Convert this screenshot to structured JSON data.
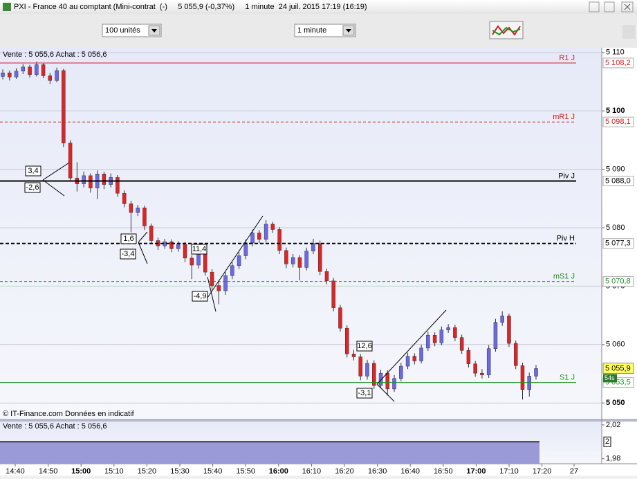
{
  "window": {
    "title": "PXI - France 40 au comptant (Mini-contrat  (-)     5 055,9 (-0,37%)     1 minute  24 juil. 2015 17:19 (16:19)"
  },
  "toolbar": {
    "quantity": "100 unités",
    "timeframe": "1 minute"
  },
  "chart_data": [
    {
      "type": "candlestick",
      "info": "Vente : 5 055,6 Achat : 5 056,6",
      "copyright": "© IT-Finance.com  Données en indicatif",
      "ylim": [
        5047.3,
        5110.8
      ],
      "yticks": [
        {
          "value": 5110,
          "label": "5 110"
        },
        {
          "value": 5100,
          "label": "5 100"
        },
        {
          "value": 5090,
          "label": "5 090"
        },
        {
          "value": 5080,
          "label": "5 080"
        },
        {
          "value": 5070,
          "label": "5 070"
        },
        {
          "value": 5060,
          "label": "5 060"
        },
        {
          "value": 5050,
          "label": "5 050"
        }
      ],
      "categories": [
        "14:40",
        "14:50",
        "15:00",
        "15:10",
        "15:20",
        "15:30",
        "15:40",
        "15:50",
        "16:00",
        "16:10",
        "16:20",
        "16:30",
        "16:40",
        "16:50",
        "17:00",
        "17:10",
        "17:20",
        "27"
      ],
      "up_color": "#6a6ae6",
      "down_color": "#e02424",
      "levels": [
        {
          "name": "R1 J",
          "value": 5108.2,
          "label": "5 108,2",
          "color": "#d02020",
          "dashed": false
        },
        {
          "name": "mR1 J",
          "value": 5098.1,
          "label": "5 098,1",
          "color": "#d02020",
          "dashed": true
        },
        {
          "name": "Piv J",
          "value": 5088.0,
          "label": "5 088,0",
          "color": "#000000",
          "dashed": false
        },
        {
          "name": "Piv H",
          "value": 5077.3,
          "label": "5 077,3",
          "color": "#000000",
          "dashed": true
        },
        {
          "name": "mS1 J",
          "value": 5070.8,
          "label": "5 070,8",
          "color": "#209020",
          "dashed": true
        },
        {
          "name": "S1 J",
          "value": 5053.5,
          "label": "5 053,5",
          "color": "#209020",
          "dashed": false
        }
      ],
      "current": {
        "value": 5055.9,
        "label": "5 055,9",
        "timer": "54s"
      },
      "annotations": [
        "3,4",
        "-2,6",
        "1,6",
        "-3,4",
        "11,4",
        "-4,9",
        "12,6",
        "-3,1"
      ],
      "candles": [
        [
          5105.9,
          5107.1,
          5105.4,
          5106.5
        ],
        [
          5106.5,
          5106.9,
          5105.2,
          5105.8
        ],
        [
          5105.8,
          5107.3,
          5105.5,
          5106.8
        ],
        [
          5106.8,
          5108.0,
          5106.3,
          5107.5
        ],
        [
          5107.5,
          5107.9,
          5105.7,
          5106.2
        ],
        [
          5106.2,
          5108.4,
          5105.9,
          5107.9
        ],
        [
          5107.9,
          5108.2,
          5105.6,
          5106.0
        ],
        [
          5106.0,
          5106.5,
          5104.6,
          5105.2
        ],
        [
          5105.2,
          5107.4,
          5104.9,
          5106.9
        ],
        [
          5106.9,
          5107.2,
          5093.8,
          5094.5
        ],
        [
          5094.5,
          5095.0,
          5087.9,
          5088.5
        ],
        [
          5088.5,
          5091.2,
          5086.2,
          5087.5
        ],
        [
          5087.5,
          5089.6,
          5086.9,
          5088.9
        ],
        [
          5088.9,
          5089.3,
          5086.0,
          5086.8
        ],
        [
          5086.8,
          5089.8,
          5084.9,
          5089.2
        ],
        [
          5089.2,
          5089.6,
          5086.6,
          5087.4
        ],
        [
          5087.4,
          5089.3,
          5086.9,
          5088.6
        ],
        [
          5088.6,
          5089.0,
          5085.3,
          5085.9
        ],
        [
          5085.9,
          5086.4,
          5083.5,
          5084.1
        ],
        [
          5084.1,
          5084.6,
          5079.2,
          5082.6
        ],
        [
          5082.6,
          5083.9,
          5082.0,
          5083.4
        ],
        [
          5083.4,
          5083.8,
          5079.6,
          5080.3
        ],
        [
          5080.3,
          5080.7,
          5077.2,
          5077.8
        ],
        [
          5077.8,
          5078.3,
          5076.2,
          5076.9
        ],
        [
          5076.9,
          5078.1,
          5076.4,
          5077.6
        ],
        [
          5077.6,
          5078.0,
          5075.8,
          5076.4
        ],
        [
          5076.4,
          5077.7,
          5075.9,
          5077.2
        ],
        [
          5077.2,
          5077.6,
          5074.1,
          5074.8
        ],
        [
          5074.8,
          5075.3,
          5071.2,
          5073.6
        ],
        [
          5073.6,
          5076.5,
          5073.0,
          5075.9
        ],
        [
          5075.9,
          5076.3,
          5071.8,
          5072.4
        ],
        [
          5072.4,
          5072.9,
          5069.4,
          5070.1
        ],
        [
          5070.1,
          5071.0,
          5066.9,
          5069.2
        ],
        [
          5069.2,
          5072.4,
          5068.5,
          5071.8
        ],
        [
          5071.8,
          5074.1,
          5071.2,
          5073.5
        ],
        [
          5073.5,
          5075.8,
          5072.9,
          5075.2
        ],
        [
          5075.2,
          5078.0,
          5074.6,
          5077.4
        ],
        [
          5077.4,
          5079.7,
          5076.8,
          5079.1
        ],
        [
          5079.1,
          5079.6,
          5077.3,
          5078.0
        ],
        [
          5078.0,
          5081.3,
          5077.5,
          5080.6
        ],
        [
          5080.6,
          5081.0,
          5079.1,
          5079.7
        ],
        [
          5079.7,
          5080.1,
          5075.5,
          5076.1
        ],
        [
          5076.1,
          5076.6,
          5073.1,
          5073.8
        ],
        [
          5073.8,
          5075.5,
          5073.2,
          5074.9
        ],
        [
          5074.9,
          5075.3,
          5071.0,
          5073.2
        ],
        [
          5073.2,
          5076.6,
          5072.7,
          5076.0
        ],
        [
          5076.0,
          5078.1,
          5075.5,
          5077.3
        ],
        [
          5077.3,
          5077.8,
          5071.9,
          5072.5
        ],
        [
          5072.5,
          5073.0,
          5070.3,
          5070.9
        ],
        [
          5070.9,
          5071.4,
          5065.7,
          5066.3
        ],
        [
          5066.3,
          5066.8,
          5062.2,
          5062.8
        ],
        [
          5062.8,
          5063.3,
          5057.8,
          5058.4
        ],
        [
          5058.4,
          5059.1,
          5057.3,
          5057.9
        ],
        [
          5057.9,
          5058.4,
          5053.9,
          5054.6
        ],
        [
          5054.6,
          5057.4,
          5054.0,
          5056.8
        ],
        [
          5056.8,
          5057.3,
          5052.4,
          5053.0
        ],
        [
          5053.0,
          5055.7,
          5052.5,
          5055.1
        ],
        [
          5055.1,
          5055.6,
          5051.3,
          5052.4
        ],
        [
          5052.4,
          5054.8,
          5051.9,
          5054.2
        ],
        [
          5054.2,
          5056.9,
          5053.7,
          5056.3
        ],
        [
          5056.3,
          5058.6,
          5055.8,
          5058.0
        ],
        [
          5058.0,
          5058.5,
          5056.6,
          5057.2
        ],
        [
          5057.2,
          5060.0,
          5056.8,
          5059.4
        ],
        [
          5059.4,
          5062.2,
          5058.9,
          5061.6
        ],
        [
          5061.6,
          5062.1,
          5059.7,
          5060.3
        ],
        [
          5060.3,
          5063.1,
          5059.9,
          5062.5
        ],
        [
          5062.5,
          5063.5,
          5062.0,
          5062.9
        ],
        [
          5062.9,
          5063.4,
          5060.6,
          5061.2
        ],
        [
          5061.2,
          5061.7,
          5058.4,
          5059.0
        ],
        [
          5059.0,
          5059.5,
          5056.1,
          5056.7
        ],
        [
          5056.7,
          5057.2,
          5054.5,
          5055.1
        ],
        [
          5055.1,
          5055.8,
          5054.2,
          5054.8
        ],
        [
          5054.8,
          5059.9,
          5054.3,
          5059.3
        ],
        [
          5059.3,
          5064.4,
          5058.8,
          5063.8
        ],
        [
          5063.8,
          5065.7,
          5063.2,
          5064.9
        ],
        [
          5064.9,
          5065.3,
          5059.6,
          5060.2
        ],
        [
          5060.2,
          5060.7,
          5055.8,
          5056.4
        ],
        [
          5056.4,
          5056.9,
          5050.6,
          5052.3
        ],
        [
          5052.3,
          5055.2,
          5051.1,
          5054.6
        ],
        [
          5054.6,
          5056.5,
          5054.0,
          5055.9
        ]
      ]
    },
    {
      "type": "bar",
      "info": "Vente : 5 055,6 Achat : 5 056,6",
      "ylim": [
        1.974,
        2.024
      ],
      "yticks": [
        {
          "value": 2.02,
          "label": "2,02"
        },
        {
          "value": 1.98,
          "label": "1,98"
        }
      ],
      "value": 2,
      "color": "#9a9ad8"
    }
  ]
}
